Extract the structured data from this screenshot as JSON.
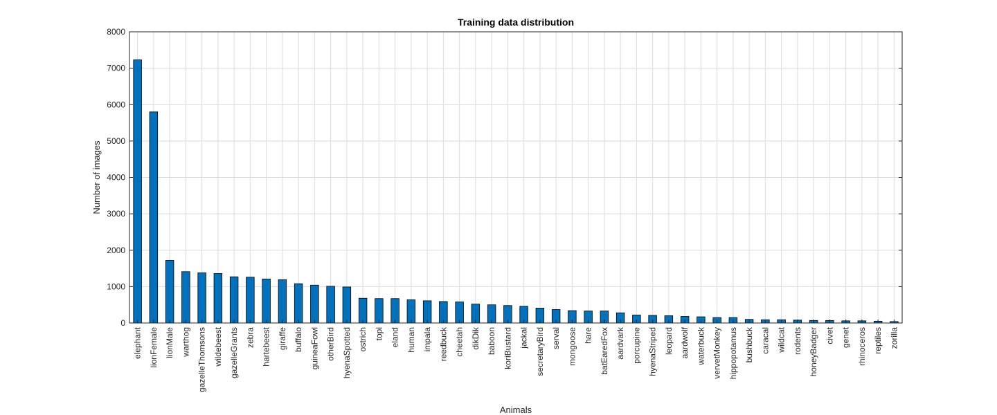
{
  "chart_data": {
    "type": "bar",
    "title": "Training data distribution",
    "xlabel": "Animals",
    "ylabel": "Number of images",
    "ylim": [
      0,
      8000
    ],
    "yticks": [
      0,
      1000,
      2000,
      3000,
      4000,
      5000,
      6000,
      7000,
      8000
    ],
    "grid": true,
    "bar_color": "#0072BD",
    "categories": [
      "elephant",
      "lionFemale",
      "lionMale",
      "warthog",
      "gazelleThomsons",
      "wildebeest",
      "gazelleGrants",
      "zebra",
      "hartebeest",
      "giraffe",
      "buffalo",
      "guineaFowl",
      "otherBird",
      "hyenaSpotted",
      "ostrich",
      "topi",
      "eland",
      "human",
      "impala",
      "reedbuck",
      "cheetah",
      "dikDik",
      "baboon",
      "koriBustard",
      "jackal",
      "secretaryBird",
      "serval",
      "mongoose",
      "hare",
      "batEaredFox",
      "aardvark",
      "porcupine",
      "hyenaStriped",
      "leopard",
      "aardwolf",
      "waterbuck",
      "vervetMonkey",
      "hippopotamus",
      "bushbuck",
      "caracal",
      "wildcat",
      "rodents",
      "honeyBadger",
      "civet",
      "genet",
      "rhinoceros",
      "reptiles",
      "zorilla"
    ],
    "values": [
      7230,
      5800,
      1720,
      1410,
      1380,
      1360,
      1270,
      1260,
      1210,
      1190,
      1080,
      1040,
      1010,
      990,
      680,
      670,
      670,
      640,
      610,
      590,
      580,
      520,
      500,
      480,
      460,
      410,
      370,
      340,
      330,
      330,
      280,
      220,
      210,
      200,
      180,
      170,
      150,
      150,
      100,
      90,
      90,
      80,
      70,
      70,
      60,
      60,
      50,
      40
    ]
  }
}
